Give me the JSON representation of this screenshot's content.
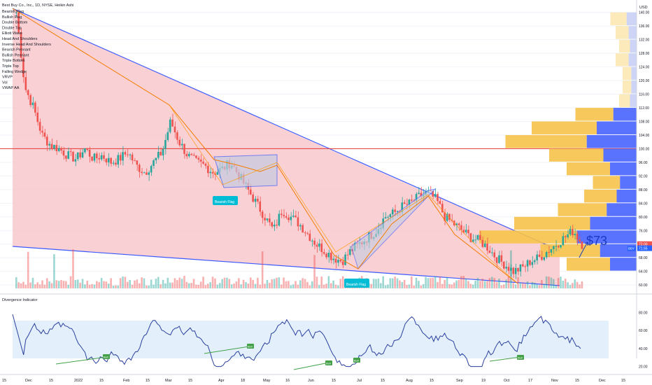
{
  "header": {
    "title": "Best Buy Co., Inc., 1D, NYSE, Heikin Ashi",
    "indicators": [
      "Bearish Flag",
      "Bullish Flag",
      "Double Bottom",
      "Double Top",
      "Elliott Wave",
      "Head And Shoulders",
      "Inverse Head And Shoulders",
      "Bearish Pennant",
      "Bullish Pennant",
      "Triple Bottom",
      "Triple Top",
      "Falling Wedge",
      "VRVP",
      "Vol",
      "VWAP AA"
    ]
  },
  "price_axis": {
    "currency": "USD",
    "ticks": [
      "140.00",
      "136.00",
      "132.00",
      "128.00",
      "124.00",
      "120.00",
      "116.00",
      "112.00",
      "108.00",
      "104.00",
      "100.00",
      "96.00",
      "92.00",
      "88.00",
      "84.00",
      "80.00",
      "76.00",
      "72.00",
      "68.00",
      "64.00",
      "60.00"
    ],
    "last_price": "72.00",
    "symbol_tag": "BBY",
    "symbol_price": "71.55"
  },
  "annotations": {
    "target": "$73",
    "flag_label_1": "Bearish Flag",
    "flag_label_2": "Bearish Flag",
    "bull_tags": [
      "Bull",
      "Bull",
      "Bull",
      "Bull",
      "Bull"
    ]
  },
  "oscillator": {
    "title": "Divergence Indicator",
    "ticks": [
      "80.00",
      "60.00",
      "40.00",
      "20.00"
    ]
  },
  "time_axis": {
    "ticks": [
      "15",
      "Dec",
      "15",
      "2022",
      "15",
      "Feb",
      "15",
      "Mar",
      "15",
      "Apr",
      "18",
      "May",
      "16",
      "Jun",
      "15",
      "Jul",
      "15",
      "Aug",
      "15",
      "Sep",
      "19",
      "Oct",
      "17",
      "Nov",
      "15",
      "Dec",
      "15"
    ]
  },
  "chart_data": {
    "type": "candlestick",
    "title": "Best Buy Co., Inc., 1D, NYSE, Heikin Ashi",
    "xlabel": "",
    "ylabel": "USD",
    "ylim": [
      59,
      142
    ],
    "x": [
      "Nov 2021",
      "Dec 2021",
      "Jan 2022",
      "Feb 2022",
      "Mar 2022",
      "Apr 2022",
      "May 2022",
      "Jun 2022",
      "Jul 2022",
      "Aug 2022",
      "Sep 2022",
      "Oct 2022",
      "Nov 2022"
    ],
    "close_path": [
      140,
      118,
      112,
      104,
      101,
      100,
      98,
      97,
      100,
      97,
      98,
      96,
      97,
      99,
      95,
      93,
      96,
      99,
      108,
      102,
      98,
      96,
      95,
      93,
      94,
      96,
      92,
      88,
      84,
      80,
      76,
      82,
      80,
      78,
      75,
      72,
      70,
      68,
      67,
      70,
      72,
      74,
      76,
      80,
      81,
      83,
      84,
      86,
      87,
      85,
      80,
      78,
      76,
      74,
      73,
      71,
      68,
      66,
      64,
      65,
      67,
      68,
      70,
      72,
      74,
      76,
      72
    ],
    "colors": {
      "up": "#26a69a",
      "down": "#ef5350",
      "wedge": "#3d5afe",
      "fill": "#f8c8cc"
    },
    "key_levels": {
      "horizontal_resistance": 100,
      "current": 72.0
    },
    "volume_profile_bins": [
      [
        136,
        0.15
      ],
      [
        132,
        0.12
      ],
      [
        128,
        0.1
      ],
      [
        124,
        0.12
      ],
      [
        120,
        0.08
      ],
      [
        116,
        0.08
      ],
      [
        112,
        0.1
      ],
      [
        108,
        0.35
      ],
      [
        104,
        0.6
      ],
      [
        100,
        0.75
      ],
      [
        96,
        0.5
      ],
      [
        92,
        0.4
      ],
      [
        88,
        0.25
      ],
      [
        84,
        0.3
      ],
      [
        80,
        0.45
      ],
      [
        76,
        0.7
      ],
      [
        72,
        0.9
      ],
      [
        68,
        0.55
      ],
      [
        64,
        0.4
      ]
    ],
    "oscillator_ylim": [
      15,
      85
    ]
  }
}
